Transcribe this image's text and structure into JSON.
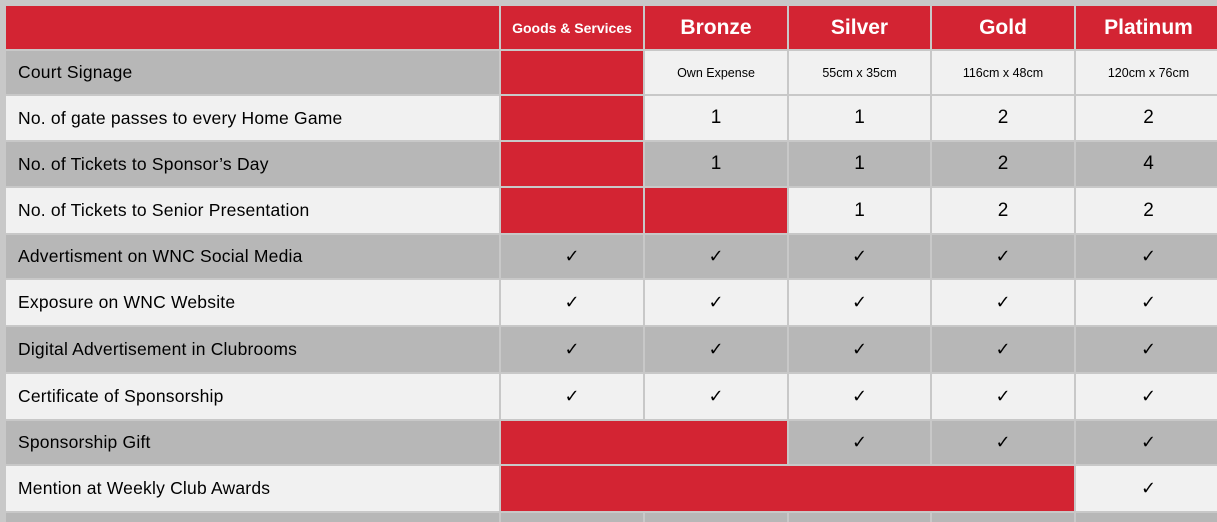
{
  "header": {
    "c1": "Goods & Services",
    "c2": "Bronze",
    "c3": "Silver",
    "c4": "Gold",
    "c5": "Platinum"
  },
  "rows": [
    {
      "label": "Court Signage",
      "values": [
        "",
        "Own Expense",
        "55cm x 35cm",
        "116cm x 48cm",
        "120cm x 76cm"
      ]
    },
    {
      "label": "No. of gate passes to every Home Game",
      "values": [
        "",
        "1",
        "1",
        "2",
        "2"
      ]
    },
    {
      "label": "No. of Tickets to Sponsor’s Day",
      "values": [
        "",
        "1",
        "1",
        "2",
        "4"
      ]
    },
    {
      "label": "No. of Tickets to Senior Presentation",
      "values": [
        "",
        "",
        "1",
        "2",
        "2"
      ]
    },
    {
      "label": "Advertisment on WNC Social Media",
      "values": [
        "✓",
        "✓",
        "✓",
        "✓",
        "✓"
      ]
    },
    {
      "label": "Exposure on WNC Website",
      "values": [
        "✓",
        "✓",
        "✓",
        "✓",
        "✓"
      ]
    },
    {
      "label": "Digital Advertisement in Clubrooms",
      "values": [
        "✓",
        "✓",
        "✓",
        "✓",
        "✓"
      ]
    },
    {
      "label": "Certificate of Sponsorship",
      "values": [
        "✓",
        "✓",
        "✓",
        "✓",
        "✓"
      ]
    },
    {
      "label": "Sponsorship Gift",
      "values": [
        "",
        "",
        "✓",
        "✓",
        "✓"
      ]
    },
    {
      "label": "Mention at Weekly Club Awards",
      "values": [
        "",
        "",
        "",
        "",
        "✓"
      ]
    }
  ],
  "colors": {
    "accent": "#d32433",
    "row_dark": "#b7b7b7",
    "row_light": "#f1f1f1"
  }
}
